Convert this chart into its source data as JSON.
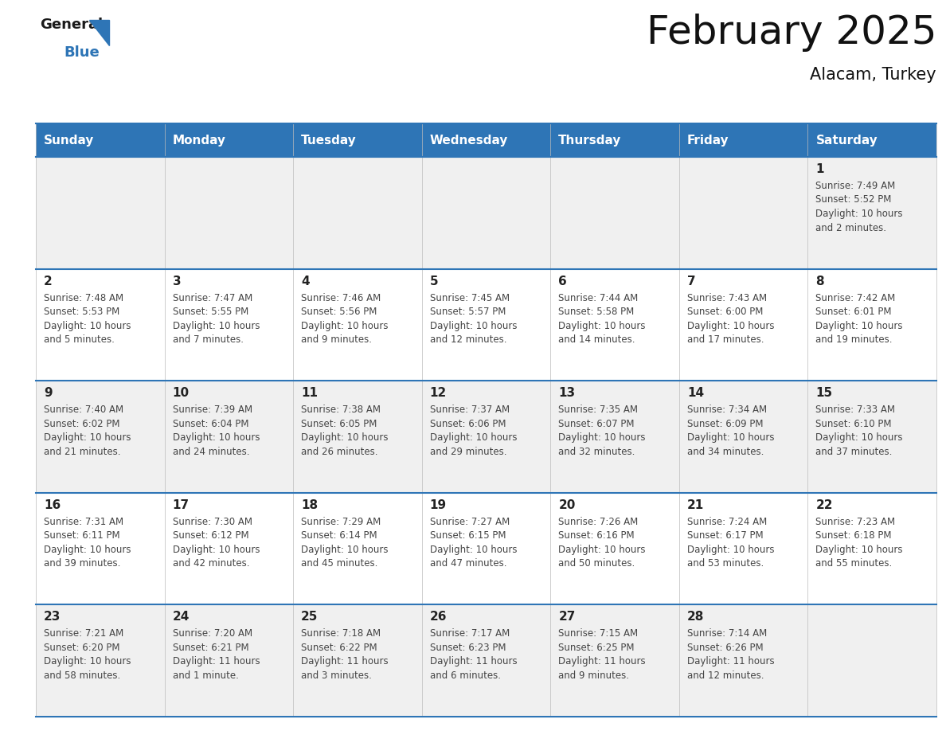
{
  "title": "February 2025",
  "subtitle": "Alacam, Turkey",
  "header_color": "#2E75B6",
  "header_text_color": "#FFFFFF",
  "day_names": [
    "Sunday",
    "Monday",
    "Tuesday",
    "Wednesday",
    "Thursday",
    "Friday",
    "Saturday"
  ],
  "background_color": "#FFFFFF",
  "cell_bg_row0": "#F0F0F0",
  "cell_bg_row1": "#FFFFFF",
  "border_color": "#2E75B6",
  "light_border_color": "#BBBBBB",
  "day_number_color": "#222222",
  "info_text_color": "#444444",
  "calendar": [
    [
      null,
      null,
      null,
      null,
      null,
      null,
      {
        "day": "1",
        "sunrise": "7:49 AM",
        "sunset": "5:52 PM",
        "daylight_line1": "Daylight: 10 hours",
        "daylight_line2": "and 2 minutes."
      }
    ],
    [
      {
        "day": "2",
        "sunrise": "7:48 AM",
        "sunset": "5:53 PM",
        "daylight_line1": "Daylight: 10 hours",
        "daylight_line2": "and 5 minutes."
      },
      {
        "day": "3",
        "sunrise": "7:47 AM",
        "sunset": "5:55 PM",
        "daylight_line1": "Daylight: 10 hours",
        "daylight_line2": "and 7 minutes."
      },
      {
        "day": "4",
        "sunrise": "7:46 AM",
        "sunset": "5:56 PM",
        "daylight_line1": "Daylight: 10 hours",
        "daylight_line2": "and 9 minutes."
      },
      {
        "day": "5",
        "sunrise": "7:45 AM",
        "sunset": "5:57 PM",
        "daylight_line1": "Daylight: 10 hours",
        "daylight_line2": "and 12 minutes."
      },
      {
        "day": "6",
        "sunrise": "7:44 AM",
        "sunset": "5:58 PM",
        "daylight_line1": "Daylight: 10 hours",
        "daylight_line2": "and 14 minutes."
      },
      {
        "day": "7",
        "sunrise": "7:43 AM",
        "sunset": "6:00 PM",
        "daylight_line1": "Daylight: 10 hours",
        "daylight_line2": "and 17 minutes."
      },
      {
        "day": "8",
        "sunrise": "7:42 AM",
        "sunset": "6:01 PM",
        "daylight_line1": "Daylight: 10 hours",
        "daylight_line2": "and 19 minutes."
      }
    ],
    [
      {
        "day": "9",
        "sunrise": "7:40 AM",
        "sunset": "6:02 PM",
        "daylight_line1": "Daylight: 10 hours",
        "daylight_line2": "and 21 minutes."
      },
      {
        "day": "10",
        "sunrise": "7:39 AM",
        "sunset": "6:04 PM",
        "daylight_line1": "Daylight: 10 hours",
        "daylight_line2": "and 24 minutes."
      },
      {
        "day": "11",
        "sunrise": "7:38 AM",
        "sunset": "6:05 PM",
        "daylight_line1": "Daylight: 10 hours",
        "daylight_line2": "and 26 minutes."
      },
      {
        "day": "12",
        "sunrise": "7:37 AM",
        "sunset": "6:06 PM",
        "daylight_line1": "Daylight: 10 hours",
        "daylight_line2": "and 29 minutes."
      },
      {
        "day": "13",
        "sunrise": "7:35 AM",
        "sunset": "6:07 PM",
        "daylight_line1": "Daylight: 10 hours",
        "daylight_line2": "and 32 minutes."
      },
      {
        "day": "14",
        "sunrise": "7:34 AM",
        "sunset": "6:09 PM",
        "daylight_line1": "Daylight: 10 hours",
        "daylight_line2": "and 34 minutes."
      },
      {
        "day": "15",
        "sunrise": "7:33 AM",
        "sunset": "6:10 PM",
        "daylight_line1": "Daylight: 10 hours",
        "daylight_line2": "and 37 minutes."
      }
    ],
    [
      {
        "day": "16",
        "sunrise": "7:31 AM",
        "sunset": "6:11 PM",
        "daylight_line1": "Daylight: 10 hours",
        "daylight_line2": "and 39 minutes."
      },
      {
        "day": "17",
        "sunrise": "7:30 AM",
        "sunset": "6:12 PM",
        "daylight_line1": "Daylight: 10 hours",
        "daylight_line2": "and 42 minutes."
      },
      {
        "day": "18",
        "sunrise": "7:29 AM",
        "sunset": "6:14 PM",
        "daylight_line1": "Daylight: 10 hours",
        "daylight_line2": "and 45 minutes."
      },
      {
        "day": "19",
        "sunrise": "7:27 AM",
        "sunset": "6:15 PM",
        "daylight_line1": "Daylight: 10 hours",
        "daylight_line2": "and 47 minutes."
      },
      {
        "day": "20",
        "sunrise": "7:26 AM",
        "sunset": "6:16 PM",
        "daylight_line1": "Daylight: 10 hours",
        "daylight_line2": "and 50 minutes."
      },
      {
        "day": "21",
        "sunrise": "7:24 AM",
        "sunset": "6:17 PM",
        "daylight_line1": "Daylight: 10 hours",
        "daylight_line2": "and 53 minutes."
      },
      {
        "day": "22",
        "sunrise": "7:23 AM",
        "sunset": "6:18 PM",
        "daylight_line1": "Daylight: 10 hours",
        "daylight_line2": "and 55 minutes."
      }
    ],
    [
      {
        "day": "23",
        "sunrise": "7:21 AM",
        "sunset": "6:20 PM",
        "daylight_line1": "Daylight: 10 hours",
        "daylight_line2": "and 58 minutes."
      },
      {
        "day": "24",
        "sunrise": "7:20 AM",
        "sunset": "6:21 PM",
        "daylight_line1": "Daylight: 11 hours",
        "daylight_line2": "and 1 minute."
      },
      {
        "day": "25",
        "sunrise": "7:18 AM",
        "sunset": "6:22 PM",
        "daylight_line1": "Daylight: 11 hours",
        "daylight_line2": "and 3 minutes."
      },
      {
        "day": "26",
        "sunrise": "7:17 AM",
        "sunset": "6:23 PM",
        "daylight_line1": "Daylight: 11 hours",
        "daylight_line2": "and 6 minutes."
      },
      {
        "day": "27",
        "sunrise": "7:15 AM",
        "sunset": "6:25 PM",
        "daylight_line1": "Daylight: 11 hours",
        "daylight_line2": "and 9 minutes."
      },
      {
        "day": "28",
        "sunrise": "7:14 AM",
        "sunset": "6:26 PM",
        "daylight_line1": "Daylight: 11 hours",
        "daylight_line2": "and 12 minutes."
      },
      null
    ]
  ],
  "logo_general_color": "#1a1a1a",
  "logo_blue_color": "#2E75B6",
  "title_fontsize": 36,
  "subtitle_fontsize": 15,
  "header_fontsize": 11,
  "day_num_fontsize": 11,
  "info_fontsize": 8.5
}
